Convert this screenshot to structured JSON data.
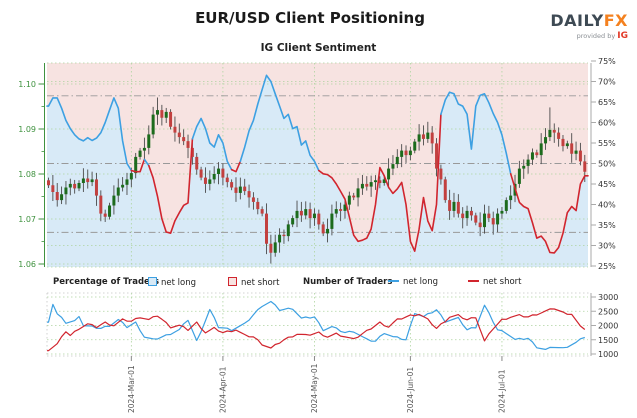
{
  "header": {
    "title": "EUR/USD Client Positioning",
    "subtitle": "IG Client Sentiment"
  },
  "logo": {
    "brand": "DAILY",
    "accent": "FX",
    "tagline": "provided by",
    "tagline_brand": "IG"
  },
  "legend": {
    "percentage_header": "Percentage of Traders",
    "number_header": "Number of Traders",
    "net_long_label": "net long",
    "net_short_label": "net short"
  },
  "colors": {
    "pink_zone": "#f7e3e1",
    "blue_zone": "#d8eaf7",
    "net_long_line": "#3da0e2",
    "net_short_line": "#d1252e",
    "candle_up": "#1c6b1c",
    "candle_down": "#c2403f",
    "wick": "#4a4a4a",
    "price_axis_green": "#3f923f",
    "grid_green": "#aed4a0",
    "dashdot_gray": "#999999",
    "spine_gray": "#aaaaaa",
    "axis_text": "#333333",
    "xtick_text": "#555555"
  },
  "chart_data": {
    "type": "candlestick+line",
    "title": "IG Client Sentiment",
    "x_tick_labels": [
      "2024-Mar-01",
      "2024-Apr-01",
      "2024-May-01",
      "2024-Jun-01",
      "2024-Jul-01"
    ],
    "month_start_days": [
      19,
      40,
      61,
      83,
      104
    ],
    "price_axis": {
      "side": "left",
      "ticks": [
        1.06,
        1.07,
        1.08,
        1.09,
        1.1
      ],
      "range": [
        1.0595,
        1.1045
      ]
    },
    "sentiment_axis": {
      "side": "right",
      "ticks": [
        25,
        30,
        35,
        40,
        45,
        50,
        55,
        60,
        65,
        70,
        75
      ],
      "unit": "%",
      "range": [
        24.7,
        75
      ]
    },
    "dashdot_levels_pct": [
      66.5,
      50,
      33.2
    ],
    "dotted_pct_levels": [
      30,
      70
    ],
    "daily_closes": [
      1.0775,
      1.076,
      1.0742,
      1.0755,
      1.077,
      1.0778,
      1.0768,
      1.078,
      1.079,
      1.0782,
      1.0788,
      1.0752,
      1.0712,
      1.0705,
      1.073,
      1.0752,
      1.077,
      1.0776,
      1.0788,
      1.0802,
      1.0838,
      1.0852,
      1.0858,
      1.0888,
      1.0932,
      1.0942,
      1.0925,
      1.0938,
      1.0905,
      1.0892,
      1.0882,
      1.0873,
      1.0858,
      1.0838,
      1.081,
      1.0792,
      1.0778,
      1.0788,
      1.08,
      1.0812,
      1.0792,
      1.0782,
      1.077,
      1.0758,
      1.0772,
      1.0762,
      1.0748,
      1.0738,
      1.0722,
      1.0712,
      1.0645,
      1.0625,
      1.0648,
      1.0665,
      1.0662,
      1.0688,
      1.0702,
      1.0718,
      1.0708,
      1.0722,
      1.0702,
      1.0712,
      1.0688,
      1.0668,
      1.0678,
      1.0712,
      1.0722,
      1.0718,
      1.0732,
      1.0752,
      1.0748,
      1.0768,
      1.0778,
      1.0772,
      1.0782,
      1.0786,
      1.078,
      1.0788,
      1.0812,
      1.0822,
      1.0838,
      1.0852,
      1.0842,
      1.0852,
      1.0872,
      1.0888,
      1.0878,
      1.0892,
      1.0868,
      1.0812,
      1.0788,
      1.0742,
      1.0718,
      1.0738,
      1.0712,
      1.0702,
      1.0718,
      1.0708,
      1.0692,
      1.0682,
      1.0712,
      1.0702,
      1.0688,
      1.0712,
      1.0718,
      1.0742,
      1.0752,
      1.0778,
      1.0812,
      1.0818,
      1.0832,
      1.0848,
      1.0842,
      1.0868,
      1.0882,
      1.0898,
      1.0892,
      1.0878,
      1.0862,
      1.0868,
      1.0845,
      1.0852,
      1.0828,
      1.0805
    ],
    "first_open": 1.0786,
    "wick_overrides": {
      "12": {
        "l": 1.0695
      },
      "25": {
        "h": 1.097
      },
      "50": {
        "l": 1.0622
      },
      "51": {
        "l": 1.0601
      },
      "87": {
        "h": 1.0916
      },
      "115": {
        "h": 1.0948
      }
    },
    "sentiment_pct": [
      64,
      66,
      66,
      63.5,
      60.5,
      58.5,
      57,
      56,
      55.5,
      56.3,
      55.6,
      56.2,
      57.5,
      60,
      63,
      66,
      63.5,
      55.5,
      50,
      48.3,
      48,
      48,
      51,
      49.5,
      46.5,
      42,
      36.5,
      33.3,
      33,
      36,
      38,
      39.8,
      40.4,
      56,
      59,
      61,
      58.5,
      55,
      54,
      57,
      55,
      50.5,
      48.5,
      48,
      50.5,
      54,
      58,
      60.5,
      64.5,
      68,
      71.5,
      70,
      67,
      64,
      61,
      62,
      58.5,
      59,
      54.5,
      55.5,
      52,
      50.5,
      48.3,
      47.5,
      47.3,
      46.5,
      45,
      43.2,
      41.3,
      37,
      32.5,
      31,
      31.3,
      31.8,
      34,
      40,
      49,
      47,
      44.2,
      42.7,
      43.8,
      45.4,
      40,
      31,
      28.6,
      34,
      41.7,
      36,
      33.6,
      40,
      62,
      65.5,
      67.4,
      67,
      64.5,
      64,
      62,
      53.5,
      64,
      66.6,
      67,
      64.8,
      62.2,
      60,
      57,
      52.5,
      47.5,
      44,
      40.5,
      39.5,
      39,
      35.5,
      31.8,
      32.3,
      31,
      28.3,
      28.2,
      29.5,
      33,
      38,
      39.5,
      38.5,
      45,
      47
    ],
    "lower_panel": {
      "ticks": [
        1000,
        1500,
        2000,
        2500,
        3000
      ],
      "range": [
        900,
        3150
      ],
      "net_long_points": [
        [
          0,
          2150
        ],
        [
          1,
          2750
        ],
        [
          2,
          2400
        ],
        [
          4,
          2100
        ],
        [
          6,
          2150
        ],
        [
          7,
          2350
        ],
        [
          8,
          2000
        ],
        [
          10,
          1950
        ],
        [
          12,
          1900
        ],
        [
          14,
          2000
        ],
        [
          16,
          2200
        ],
        [
          18,
          1950
        ],
        [
          20,
          2100
        ],
        [
          22,
          1600
        ],
        [
          24,
          1500
        ],
        [
          27,
          1650
        ],
        [
          30,
          1850
        ],
        [
          32,
          2200
        ],
        [
          34,
          1450
        ],
        [
          37,
          2550
        ],
        [
          39,
          1950
        ],
        [
          42,
          1850
        ],
        [
          45,
          2050
        ],
        [
          49,
          2700
        ],
        [
          51,
          2830
        ],
        [
          53,
          2550
        ],
        [
          56,
          2600
        ],
        [
          58,
          2250
        ],
        [
          61,
          2300
        ],
        [
          63,
          1850
        ],
        [
          65,
          1950
        ],
        [
          68,
          1750
        ],
        [
          70,
          1800
        ],
        [
          73,
          1500
        ],
        [
          75,
          1450
        ],
        [
          77,
          1750
        ],
        [
          79,
          1600
        ],
        [
          82,
          1500
        ],
        [
          84,
          2450
        ],
        [
          86,
          2300
        ],
        [
          89,
          2550
        ],
        [
          91,
          2150
        ],
        [
          94,
          2250
        ],
        [
          96,
          1850
        ],
        [
          98,
          1950
        ],
        [
          100,
          2700
        ],
        [
          103,
          1850
        ],
        [
          105,
          1750
        ],
        [
          107,
          1500
        ],
        [
          110,
          1550
        ],
        [
          112,
          1250
        ],
        [
          114,
          1150
        ],
        [
          116,
          1250
        ],
        [
          118,
          1200
        ],
        [
          121,
          1400
        ],
        [
          123,
          1600
        ]
      ],
      "net_short_points": [
        [
          0,
          1150
        ],
        [
          2,
          1350
        ],
        [
          4,
          1800
        ],
        [
          5,
          1650
        ],
        [
          7,
          1900
        ],
        [
          9,
          2050
        ],
        [
          11,
          1950
        ],
        [
          13,
          2100
        ],
        [
          15,
          2000
        ],
        [
          17,
          2200
        ],
        [
          19,
          2150
        ],
        [
          21,
          2300
        ],
        [
          23,
          2200
        ],
        [
          25,
          2350
        ],
        [
          28,
          1950
        ],
        [
          30,
          2000
        ],
        [
          32,
          1850
        ],
        [
          34,
          2100
        ],
        [
          36,
          1750
        ],
        [
          38,
          1900
        ],
        [
          40,
          1750
        ],
        [
          43,
          1850
        ],
        [
          45,
          1650
        ],
        [
          47,
          1600
        ],
        [
          49,
          1350
        ],
        [
          51,
          1200
        ],
        [
          54,
          1500
        ],
        [
          57,
          1700
        ],
        [
          59,
          1650
        ],
        [
          62,
          1750
        ],
        [
          64,
          1600
        ],
        [
          66,
          1700
        ],
        [
          69,
          1550
        ],
        [
          71,
          1600
        ],
        [
          74,
          1900
        ],
        [
          76,
          2100
        ],
        [
          78,
          1950
        ],
        [
          80,
          2200
        ],
        [
          83,
          2350
        ],
        [
          85,
          2400
        ],
        [
          87,
          2200
        ],
        [
          89,
          1900
        ],
        [
          92,
          2300
        ],
        [
          94,
          2350
        ],
        [
          96,
          2200
        ],
        [
          98,
          2300
        ],
        [
          100,
          1450
        ],
        [
          102,
          1900
        ],
        [
          104,
          2200
        ],
        [
          106,
          2300
        ],
        [
          108,
          2350
        ],
        [
          110,
          2300
        ],
        [
          112,
          2400
        ],
        [
          114,
          2500
        ],
        [
          116,
          2600
        ],
        [
          118,
          2450
        ],
        [
          120,
          2400
        ],
        [
          122,
          1950
        ],
        [
          123,
          1880
        ]
      ]
    }
  }
}
